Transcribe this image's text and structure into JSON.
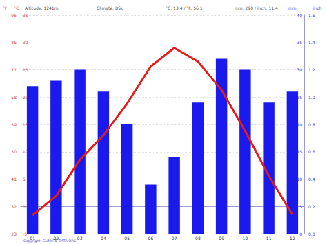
{
  "chart_data": {
    "type": "bar_line",
    "header": [
      "Altitude: 1241m",
      "Climate: BSk",
      "°C: 13.4 / °F: 56.1",
      "mm: 290 / inch: 11.4"
    ],
    "footer": "Copyright: CLIMATE-DATA.ORG",
    "categories": [
      "01",
      "02",
      "03",
      "04",
      "05",
      "06",
      "07",
      "08",
      "09",
      "10",
      "11",
      "12"
    ],
    "series": [
      {
        "name": "mm",
        "type": "bar",
        "axis": "y2",
        "color": "#1a1aee",
        "values": [
          27,
          28,
          30,
          26,
          20,
          9,
          14,
          24,
          32,
          30,
          24,
          26
        ]
      },
      {
        "name": "°C",
        "type": "line",
        "axis": "y",
        "color": "#e31b1b",
        "values": [
          -1.6,
          1.9,
          8.5,
          13,
          18.8,
          25.6,
          29,
          26.5,
          21.3,
          13.8,
          5.6,
          -1.5
        ]
      }
    ],
    "y_label": "°C",
    "ylim": [
      -5,
      35
    ],
    "yticks": [
      -5,
      0,
      5,
      10,
      15,
      20,
      25,
      30,
      35
    ],
    "y3_label": "°F",
    "y3lim": [
      23,
      95
    ],
    "y3ticks": [
      23,
      32,
      41,
      50,
      59,
      68,
      77,
      86,
      95
    ],
    "y2_label": "mm",
    "y2lim": [
      0,
      40
    ],
    "y2ticks": [
      0,
      5,
      10,
      15,
      20,
      25,
      30,
      35,
      40
    ],
    "y4_label": "inch",
    "y4lim": [
      0,
      1.6
    ],
    "y4ticks": [
      {
        "value": 0,
        "label": "0.0"
      },
      {
        "value": 0.2,
        "label": "0.2"
      },
      {
        "value": 0.4,
        "label": "0.4"
      },
      {
        "value": 0.6,
        "label": "0.6"
      },
      {
        "value": 0.8,
        "label": "0.8"
      },
      {
        "value": 1,
        "label": "1.0"
      },
      {
        "value": 1.2,
        "label": "1.2"
      },
      {
        "value": 1.4,
        "label": "1.4"
      },
      {
        "value": 1.6,
        "label": "1.6"
      }
    ],
    "grid": true
  }
}
